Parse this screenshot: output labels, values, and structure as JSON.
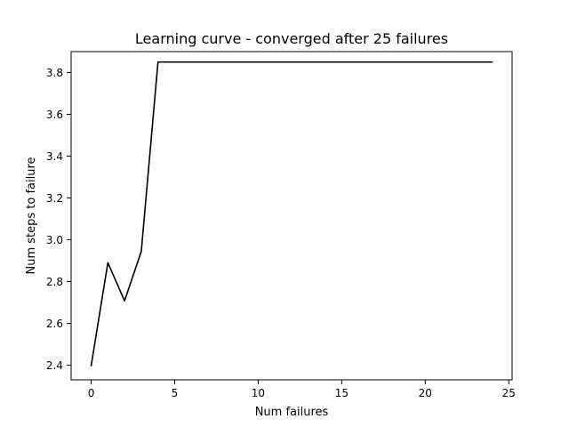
{
  "chart_data": {
    "type": "line",
    "title": "Learning curve - converged after 25 failures",
    "xlabel": "Num failures",
    "ylabel": "Num steps to failure",
    "xlim": [
      -1.2,
      25.2
    ],
    "ylim": [
      2.33,
      3.9
    ],
    "xticks": [
      0,
      5,
      10,
      15,
      20,
      25
    ],
    "yticks": [
      2.4,
      2.6,
      2.8,
      3.0,
      3.2,
      3.4,
      3.6,
      3.8
    ],
    "ytick_labels": [
      "2.4",
      "2.6",
      "2.8",
      "3.0",
      "3.2",
      "3.4",
      "3.6",
      "3.8"
    ],
    "grid": false,
    "series": [
      {
        "color": "#000000",
        "x": [
          0,
          1,
          2,
          3,
          4,
          5,
          6,
          7,
          8,
          9,
          10,
          11,
          12,
          13,
          14,
          15,
          16,
          17,
          18,
          19,
          20,
          21,
          22,
          23,
          24
        ],
        "values": [
          2.398,
          2.89,
          2.708,
          2.944,
          3.85,
          3.85,
          3.85,
          3.85,
          3.85,
          3.85,
          3.85,
          3.85,
          3.85,
          3.85,
          3.85,
          3.85,
          3.85,
          3.85,
          3.85,
          3.85,
          3.85,
          3.85,
          3.85,
          3.85,
          3.85
        ]
      }
    ]
  }
}
